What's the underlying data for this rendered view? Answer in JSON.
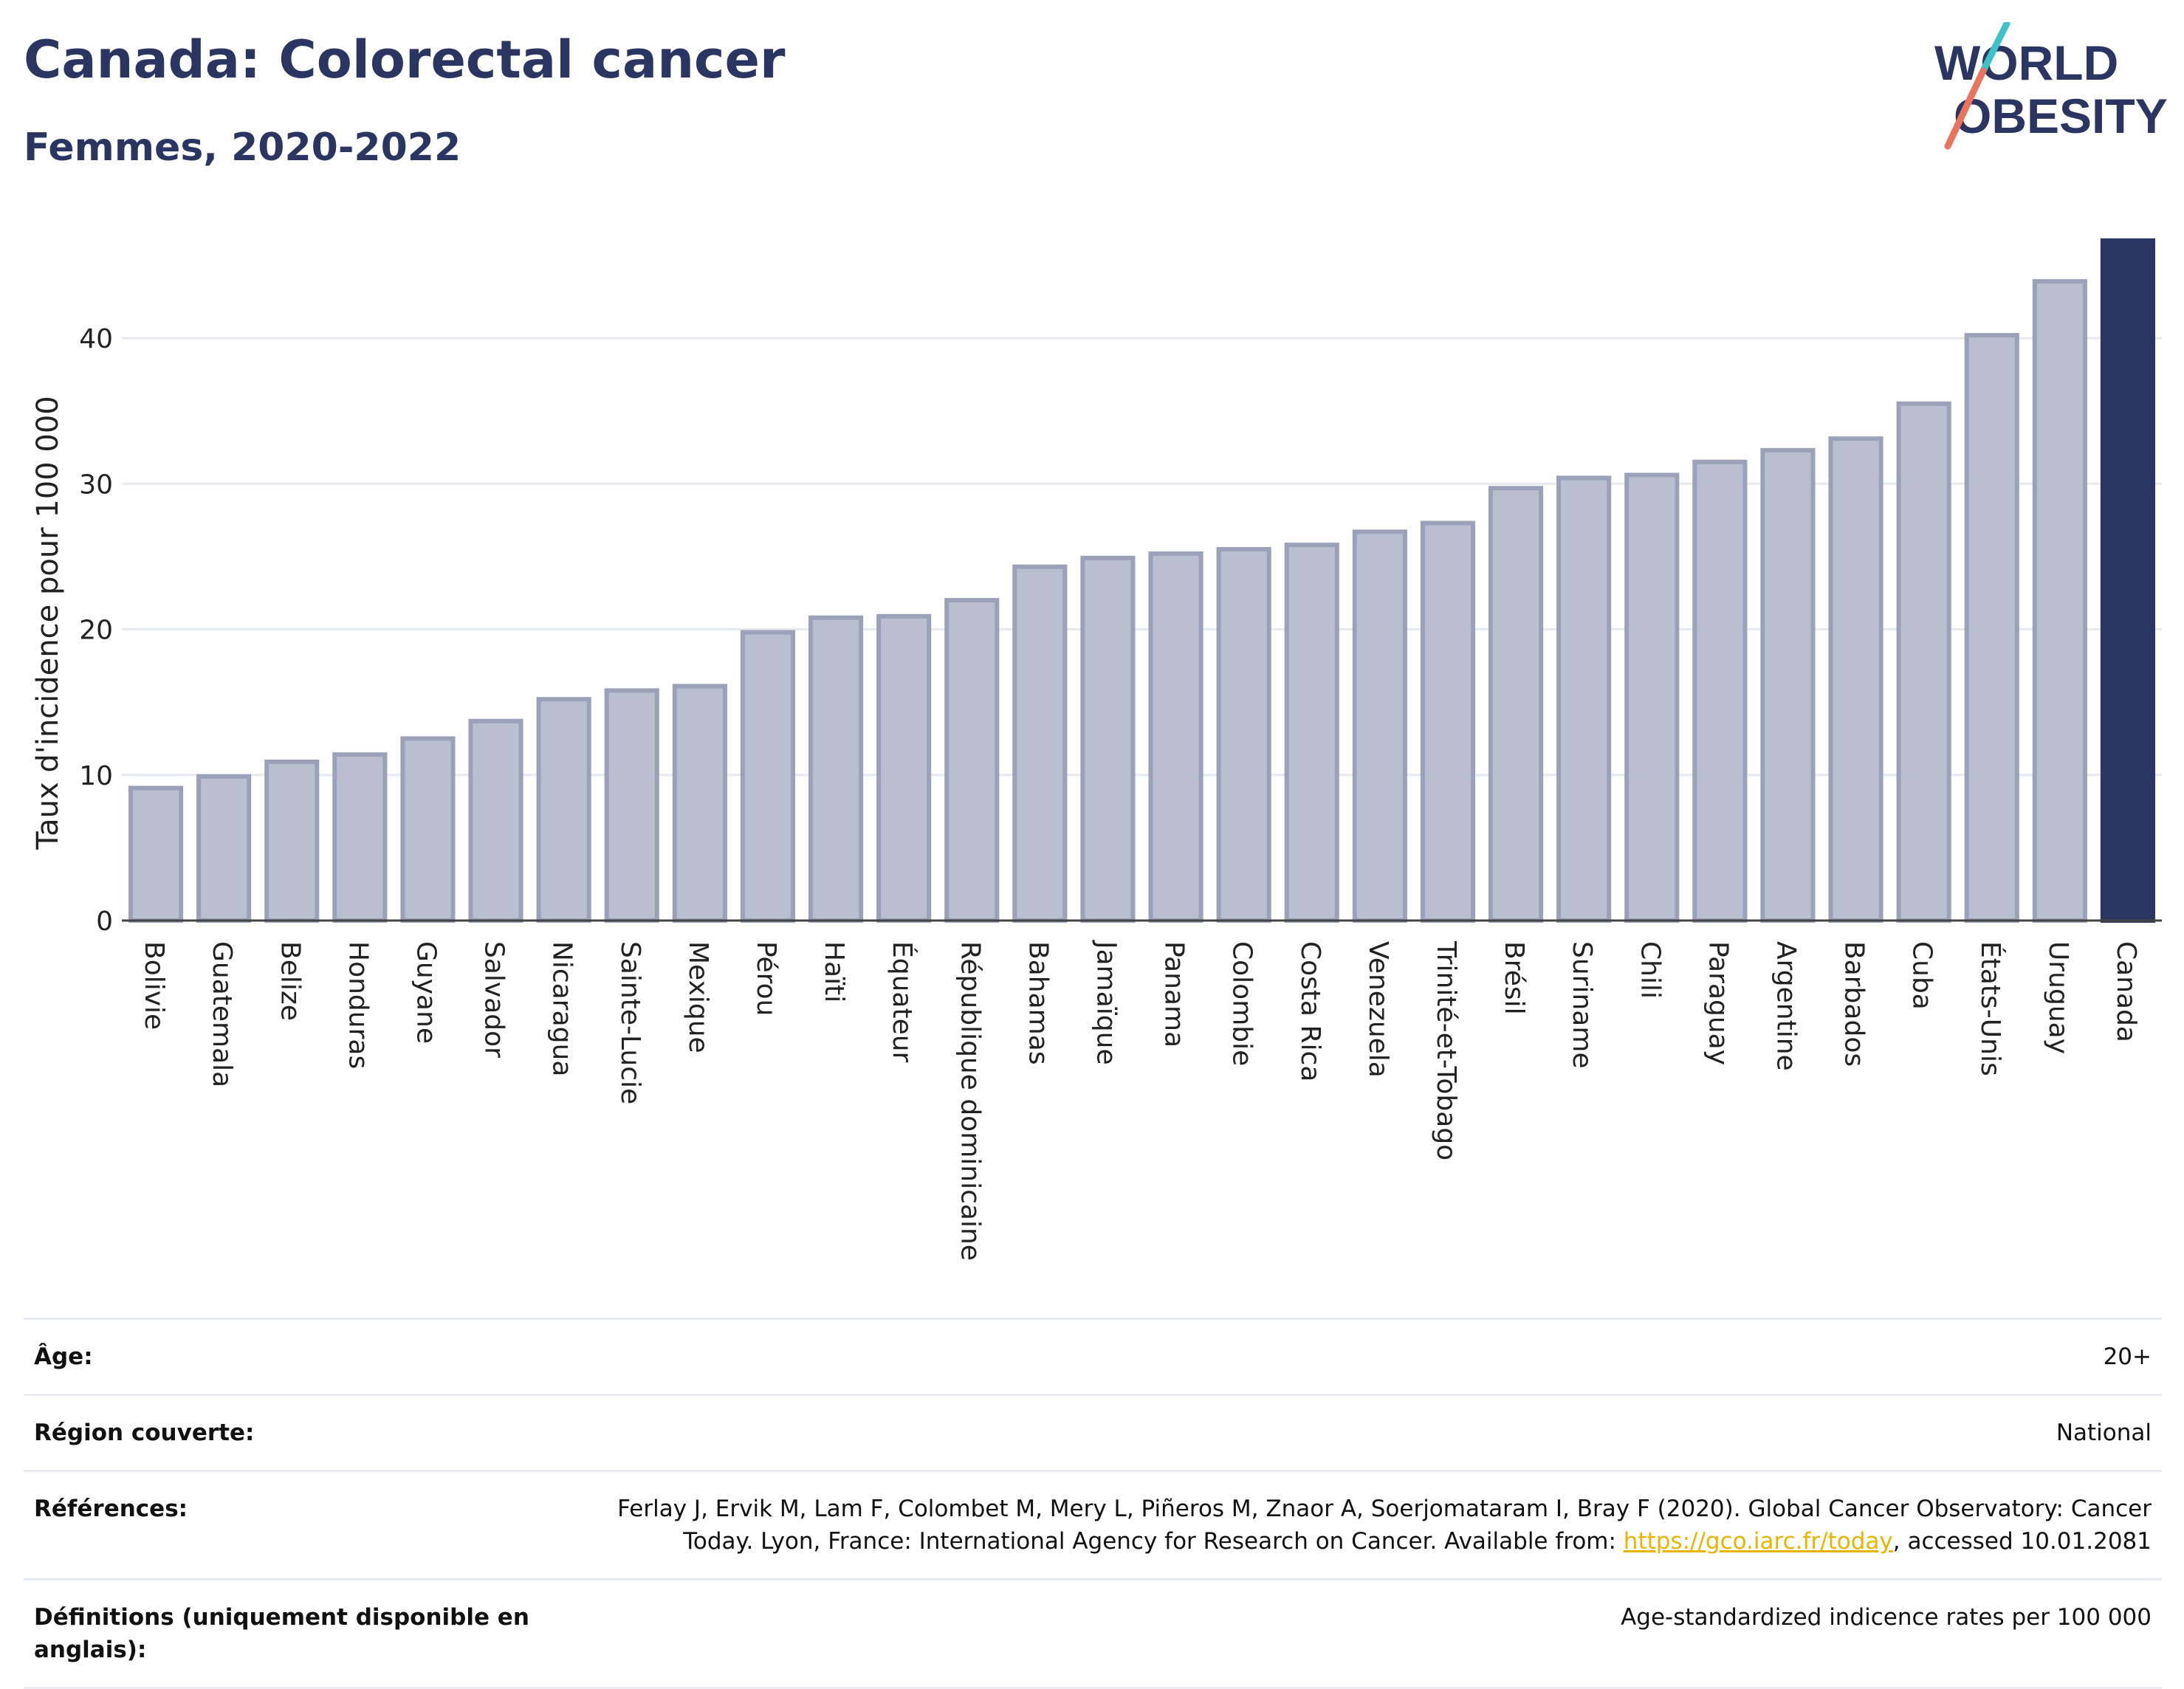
{
  "header": {
    "title": "Canada: Colorectal cancer",
    "subtitle": "Femmes, 2020-2022"
  },
  "logo": {
    "line1": "WORLD",
    "line2": "OBESITY"
  },
  "chart_data": {
    "type": "bar",
    "ylabel": "Taux d'incidence pour 100 000",
    "ylim": [
      0,
      47
    ],
    "yticks": [
      0,
      10,
      20,
      30,
      40
    ],
    "grid": true,
    "categories": [
      "Bolivie",
      "Guatemala",
      "Belize",
      "Honduras",
      "Guyane",
      "Salvador",
      "Nicaragua",
      "Sainte-Lucie",
      "Mexique",
      "Pérou",
      "Haïti",
      "Équateur",
      "République dominicaine",
      "Bahamas",
      "Jamaïque",
      "Panama",
      "Colombie",
      "Costa Rica",
      "Venezuela",
      "Trinité-et-Tobago",
      "Brésil",
      "Suriname",
      "Chili",
      "Paraguay",
      "Argentine",
      "Barbados",
      "Cuba",
      "États-Unis",
      "Uruguay",
      "Canada"
    ],
    "values": [
      9.1,
      9.9,
      10.9,
      11.4,
      12.5,
      13.7,
      15.2,
      15.8,
      16.1,
      19.8,
      20.8,
      20.9,
      22.0,
      24.3,
      24.9,
      25.2,
      25.5,
      25.8,
      26.7,
      27.3,
      29.7,
      30.4,
      30.6,
      31.5,
      32.3,
      33.1,
      35.5,
      40.2,
      43.9,
      46.7
    ],
    "highlight": "Canada",
    "colors": {
      "bar": "#b9bfcf",
      "bar_border": "#9aa1b9",
      "highlight": "#2b3561"
    }
  },
  "meta": [
    {
      "label": "Âge:",
      "value": "20+"
    },
    {
      "label": "Région couverte:",
      "value": "National"
    },
    {
      "label": "Références:",
      "value": "Ferlay J, Ervik M, Lam F, Colombet M, Mery L, Piñeros M, Znaor A, Soerjomataram I, Bray F (2020). Global Cancer Observatory: Cancer Today. Lyon, France: International Agency for Research on Cancer. Available from: ",
      "link": "https://gco.iarc.fr/today",
      "value_after": ", accessed 10.01.2081"
    },
    {
      "label": "Définitions (uniquement disponible en anglais):",
      "value": "Age-standardized indicence rates per 100 000"
    }
  ]
}
